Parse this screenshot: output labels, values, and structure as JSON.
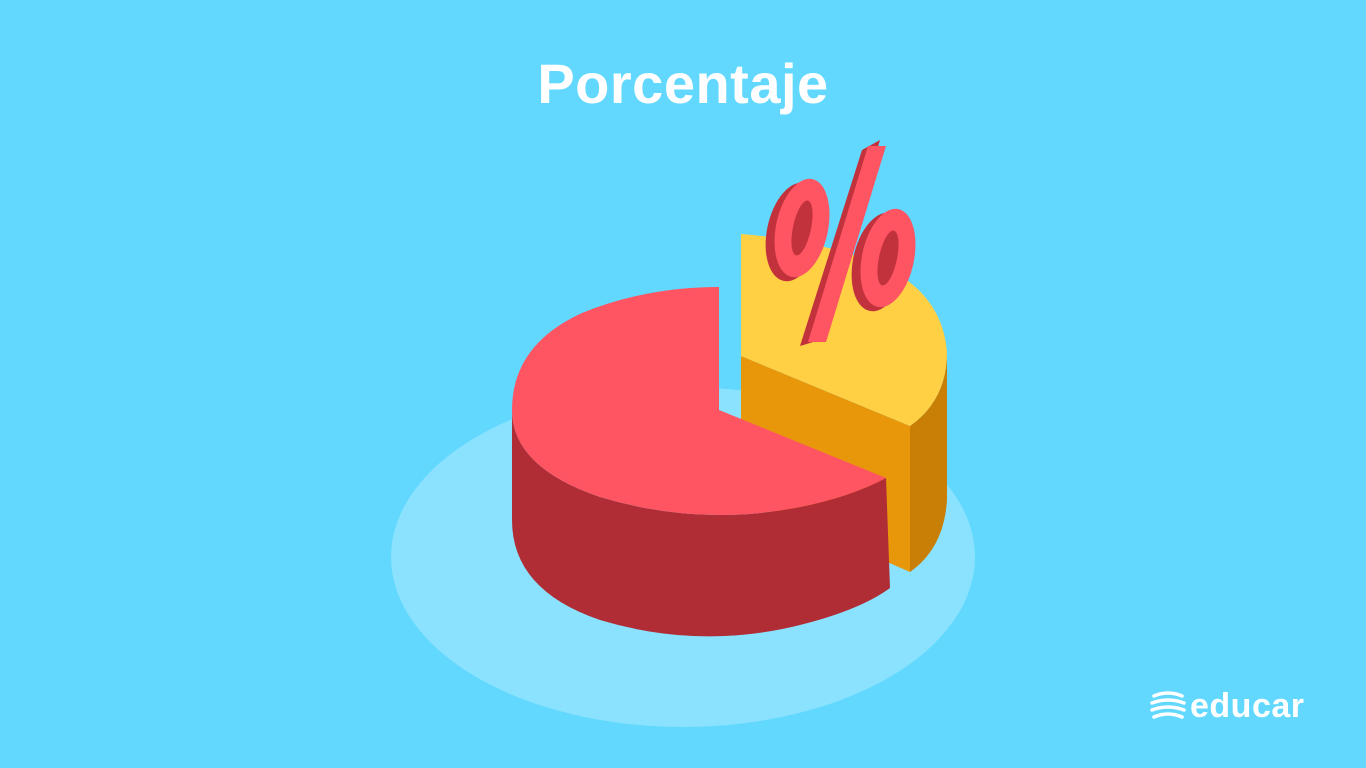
{
  "title": "Porcentaje",
  "symbol": "%",
  "brand": {
    "name": "educar",
    "icon": "educar-logo-icon"
  },
  "colors": {
    "background": "#62d8ff",
    "shadow": "#8ae2ff",
    "red_top": "#ff5562",
    "red_side": "#b12d36",
    "yellow_top": "#ffcf44",
    "yellow_side": "#e8970a",
    "yellow_side_dark": "#c97f06",
    "percent_face": "#ff5562",
    "percent_side": "#c1323c",
    "text": "#ffffff"
  }
}
